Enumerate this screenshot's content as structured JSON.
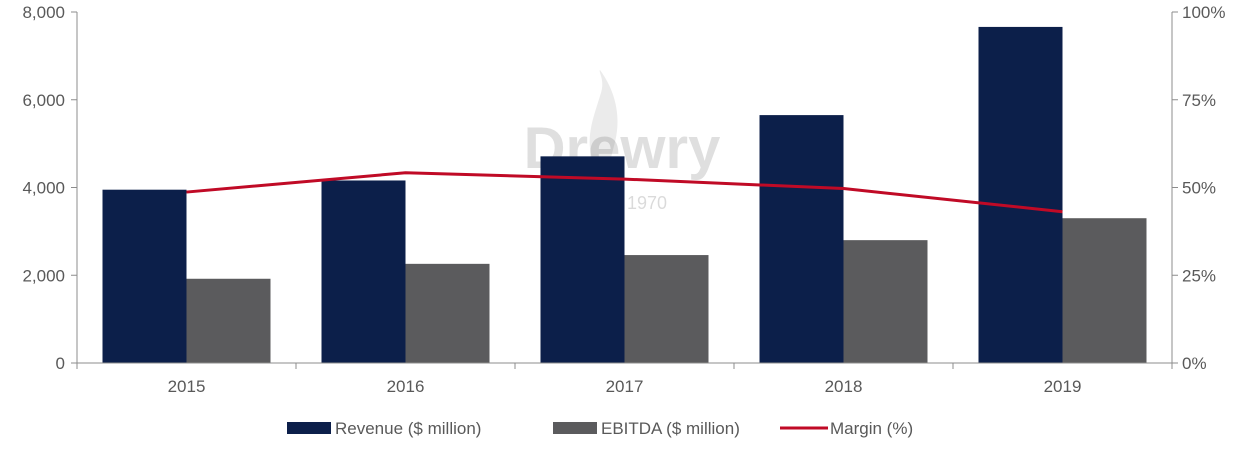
{
  "chart_data": {
    "type": "bar",
    "categories": [
      "2015",
      "2016",
      "2017",
      "2018",
      "2019"
    ],
    "series": [
      {
        "name": "Revenue ($ million)",
        "kind": "bar",
        "axis": "left",
        "color": "#0c1f4a",
        "values": [
          3950,
          4160,
          4710,
          5650,
          7660
        ]
      },
      {
        "name": "EBITDA ($ million)",
        "kind": "bar",
        "axis": "left",
        "color": "#5b5b5d",
        "values": [
          1920,
          2260,
          2460,
          2800,
          3300
        ]
      },
      {
        "name": "Margin (%)",
        "kind": "line",
        "axis": "right",
        "color": "#c00a26",
        "values": [
          48.7,
          54.2,
          52.4,
          49.7,
          43.1
        ]
      }
    ],
    "y_left": {
      "min": 0,
      "max": 8000,
      "ticks": [
        0,
        2000,
        4000,
        6000,
        8000
      ],
      "tick_labels": [
        "0",
        "2,000",
        "4,000",
        "6,000",
        "8,000"
      ]
    },
    "y_right": {
      "min": 0,
      "max": 100,
      "ticks": [
        0,
        25,
        50,
        75,
        100
      ],
      "tick_labels": [
        "0%",
        "25%",
        "50%",
        "75%",
        "100%"
      ]
    },
    "grid": false,
    "legend_position": "bottom",
    "title": "",
    "xlabel": "",
    "ylabel": ""
  },
  "watermark": {
    "brand": "Drewry",
    "since": "Since 1970"
  }
}
